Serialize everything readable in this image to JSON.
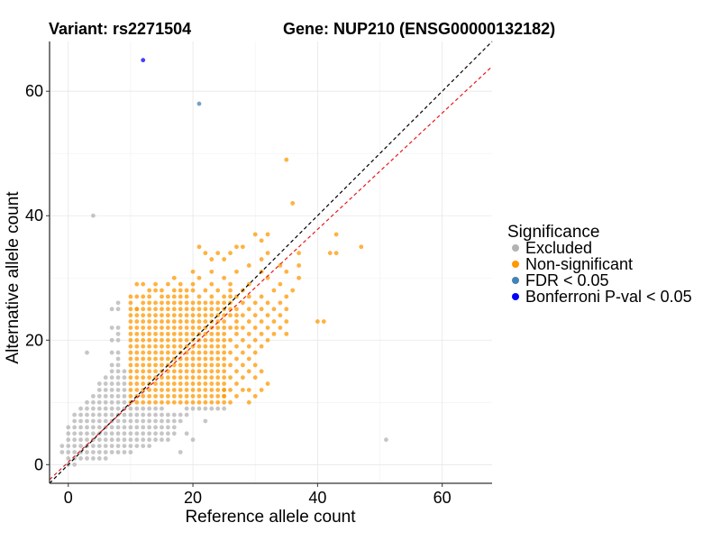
{
  "chart_data": {
    "type": "scatter",
    "title_left": "Variant: rs2271504",
    "title_right": "Gene: NUP210 (ENSG00000132182)",
    "xlabel": "Reference allele count",
    "ylabel": "Alternative allele count",
    "xlim": [
      -3,
      68
    ],
    "ylim": [
      -3,
      68
    ],
    "xticks": [
      0,
      20,
      40,
      60
    ],
    "yticks": [
      0,
      20,
      40,
      60
    ],
    "grid": true,
    "reference_lines": [
      {
        "name": "identity",
        "slope": 1.0,
        "intercept": 0,
        "color": "#000000",
        "dash": "dashed"
      },
      {
        "name": "expected-ratio",
        "slope": 0.935,
        "intercept": 0.4,
        "color": "#e41a1c",
        "dash": "dashed"
      }
    ],
    "legend": {
      "title": "Significance",
      "position": "right",
      "entries": [
        {
          "label": "Excluded",
          "color": "#b3b3b3"
        },
        {
          "label": "Non-significant",
          "color": "#ff9800"
        },
        {
          "label": "FDR < 0.05",
          "color": "#4682b4"
        },
        {
          "label": "Bonferroni P-val < 0.05",
          "color": "#0000ff"
        }
      ]
    },
    "series": [
      {
        "name": "Excluded",
        "color": "#b3b3b3",
        "points": [
          [
            0,
            0
          ],
          [
            0,
            1
          ],
          [
            0,
            2
          ],
          [
            0,
            3
          ],
          [
            0,
            4
          ],
          [
            0,
            5
          ],
          [
            1,
            1
          ],
          [
            1,
            2
          ],
          [
            1,
            3
          ],
          [
            1,
            4
          ],
          [
            1,
            5
          ],
          [
            1,
            6
          ],
          [
            1,
            7
          ],
          [
            2,
            2
          ],
          [
            2,
            3
          ],
          [
            2,
            4
          ],
          [
            2,
            5
          ],
          [
            2,
            6
          ],
          [
            2,
            7
          ],
          [
            2,
            8
          ],
          [
            3,
            1
          ],
          [
            3,
            2
          ],
          [
            3,
            3
          ],
          [
            3,
            4
          ],
          [
            3,
            5
          ],
          [
            3,
            6
          ],
          [
            3,
            7
          ],
          [
            3,
            8
          ],
          [
            3,
            9
          ],
          [
            4,
            2
          ],
          [
            4,
            3
          ],
          [
            4,
            4
          ],
          [
            4,
            5
          ],
          [
            4,
            6
          ],
          [
            4,
            7
          ],
          [
            4,
            8
          ],
          [
            4,
            9
          ],
          [
            4,
            10
          ],
          [
            5,
            1
          ],
          [
            5,
            2
          ],
          [
            5,
            3
          ],
          [
            5,
            4
          ],
          [
            5,
            5
          ],
          [
            5,
            6
          ],
          [
            5,
            7
          ],
          [
            5,
            8
          ],
          [
            5,
            9
          ],
          [
            5,
            10
          ],
          [
            5,
            11
          ],
          [
            6,
            2
          ],
          [
            6,
            3
          ],
          [
            6,
            4
          ],
          [
            6,
            5
          ],
          [
            6,
            6
          ],
          [
            6,
            7
          ],
          [
            6,
            8
          ],
          [
            6,
            9
          ],
          [
            6,
            10
          ],
          [
            6,
            11
          ],
          [
            6,
            12
          ],
          [
            7,
            3
          ],
          [
            7,
            4
          ],
          [
            7,
            5
          ],
          [
            7,
            6
          ],
          [
            7,
            7
          ],
          [
            7,
            8
          ],
          [
            7,
            9
          ],
          [
            7,
            10
          ],
          [
            7,
            11
          ],
          [
            7,
            12
          ],
          [
            7,
            13
          ],
          [
            8,
            2
          ],
          [
            8,
            3
          ],
          [
            8,
            4
          ],
          [
            8,
            5
          ],
          [
            8,
            6
          ],
          [
            8,
            7
          ],
          [
            8,
            8
          ],
          [
            8,
            9
          ],
          [
            8,
            10
          ],
          [
            8,
            11
          ],
          [
            8,
            12
          ],
          [
            8,
            13
          ],
          [
            8,
            14
          ],
          [
            9,
            3
          ],
          [
            9,
            4
          ],
          [
            9,
            5
          ],
          [
            9,
            6
          ],
          [
            9,
            7
          ],
          [
            9,
            8
          ],
          [
            9,
            9
          ],
          [
            9,
            10
          ],
          [
            9,
            11
          ],
          [
            9,
            12
          ],
          [
            9,
            13
          ],
          [
            9,
            14
          ],
          [
            9,
            15
          ],
          [
            10,
            3
          ],
          [
            10,
            4
          ],
          [
            10,
            5
          ],
          [
            10,
            6
          ],
          [
            10,
            7
          ],
          [
            10,
            8
          ],
          [
            10,
            9
          ],
          [
            11,
            4
          ],
          [
            11,
            5
          ],
          [
            11,
            6
          ],
          [
            11,
            7
          ],
          [
            11,
            8
          ],
          [
            11,
            9
          ],
          [
            12,
            4
          ],
          [
            12,
            5
          ],
          [
            12,
            6
          ],
          [
            12,
            7
          ],
          [
            12,
            8
          ],
          [
            12,
            9
          ],
          [
            13,
            4
          ],
          [
            13,
            5
          ],
          [
            13,
            6
          ],
          [
            13,
            7
          ],
          [
            13,
            8
          ],
          [
            13,
            9
          ],
          [
            14,
            5
          ],
          [
            14,
            6
          ],
          [
            14,
            7
          ],
          [
            14,
            8
          ],
          [
            14,
            9
          ],
          [
            15,
            5
          ],
          [
            15,
            6
          ],
          [
            15,
            7
          ],
          [
            15,
            8
          ],
          [
            15,
            9
          ],
          [
            16,
            5
          ],
          [
            16,
            6
          ],
          [
            16,
            7
          ],
          [
            16,
            8
          ],
          [
            17,
            6
          ],
          [
            17,
            7
          ],
          [
            17,
            8
          ],
          [
            18,
            7
          ],
          [
            18,
            8
          ],
          [
            19,
            8
          ],
          [
            19,
            9
          ],
          [
            20,
            9
          ],
          [
            21,
            9
          ],
          [
            22,
            9
          ],
          [
            23,
            9
          ],
          [
            24,
            9
          ],
          [
            25,
            9
          ],
          [
            1,
            0
          ],
          [
            2,
            1
          ],
          [
            4,
            1
          ],
          [
            6,
            1
          ],
          [
            7,
            2
          ],
          [
            9,
            2
          ],
          [
            10,
            2
          ],
          [
            11,
            3
          ],
          [
            12,
            3
          ],
          [
            -1,
            2
          ],
          [
            -1,
            3
          ],
          [
            0,
            6
          ],
          [
            1,
            8
          ],
          [
            2,
            9
          ],
          [
            3,
            10
          ],
          [
            4,
            11
          ],
          [
            5,
            12
          ],
          [
            5,
            13
          ],
          [
            6,
            13
          ],
          [
            6,
            14
          ],
          [
            7,
            14
          ],
          [
            7,
            15
          ],
          [
            7,
            16
          ],
          [
            8,
            15
          ],
          [
            8,
            16
          ],
          [
            8,
            17
          ],
          [
            8,
            18
          ],
          [
            7,
            18
          ],
          [
            7,
            20
          ],
          [
            7,
            22
          ],
          [
            8,
            20
          ],
          [
            8,
            21
          ],
          [
            8,
            22
          ],
          [
            7,
            25
          ],
          [
            8,
            25
          ],
          [
            8,
            26
          ],
          [
            3,
            18
          ],
          [
            4,
            40
          ],
          [
            51,
            4
          ],
          [
            18,
            2
          ],
          [
            20,
            4
          ],
          [
            19,
            5
          ],
          [
            22,
            7
          ],
          [
            13,
            3
          ],
          [
            15,
            4
          ],
          [
            17,
            5
          ],
          [
            14,
            4
          ],
          [
            16,
            4
          ]
        ]
      },
      {
        "name": "Non-significant",
        "color": "#ff9800",
        "points": []
      },
      {
        "name": "FDR < 0.05",
        "color": "#4682b4",
        "points": [
          [
            21,
            58
          ]
        ]
      },
      {
        "name": "Bonferroni P-val < 0.05",
        "color": "#0000ff",
        "points": [
          [
            12,
            65
          ]
        ]
      }
    ],
    "non_significant_grid": {
      "note": "dense block of Non-significant points covering x 10-25, y 10-25 (integer lattice)",
      "x_range": [
        10,
        25
      ],
      "y_range": [
        10,
        25
      ]
    },
    "non_significant_extra": [
      [
        10,
        26
      ],
      [
        11,
        25
      ],
      [
        11,
        27
      ],
      [
        12,
        26
      ],
      [
        12,
        27
      ],
      [
        12,
        29
      ],
      [
        13,
        26
      ],
      [
        13,
        27
      ],
      [
        13,
        28
      ],
      [
        14,
        26
      ],
      [
        14,
        28
      ],
      [
        14,
        29
      ],
      [
        15,
        26
      ],
      [
        15,
        27
      ],
      [
        15,
        28
      ],
      [
        16,
        26
      ],
      [
        16,
        27
      ],
      [
        16,
        29
      ],
      [
        17,
        26
      ],
      [
        17,
        27
      ],
      [
        17,
        28
      ],
      [
        17,
        30
      ],
      [
        18,
        26
      ],
      [
        18,
        27
      ],
      [
        18,
        28
      ],
      [
        18,
        29
      ],
      [
        19,
        26
      ],
      [
        19,
        27
      ],
      [
        19,
        28
      ],
      [
        20,
        26
      ],
      [
        20,
        28
      ],
      [
        20,
        29
      ],
      [
        20,
        31
      ],
      [
        21,
        26
      ],
      [
        21,
        27
      ],
      [
        21,
        30
      ],
      [
        21,
        35
      ],
      [
        22,
        26
      ],
      [
        22,
        28
      ],
      [
        22,
        34
      ],
      [
        23,
        26
      ],
      [
        23,
        27
      ],
      [
        23,
        29
      ],
      [
        23,
        31
      ],
      [
        23,
        33
      ],
      [
        24,
        26
      ],
      [
        24,
        28
      ],
      [
        24,
        34
      ],
      [
        25,
        26
      ],
      [
        25,
        27
      ],
      [
        25,
        30
      ],
      [
        25,
        33
      ],
      [
        26,
        24
      ],
      [
        26,
        25
      ],
      [
        26,
        26
      ],
      [
        26,
        27
      ],
      [
        26,
        28
      ],
      [
        26,
        29
      ],
      [
        26,
        34
      ],
      [
        27,
        22
      ],
      [
        27,
        23
      ],
      [
        27,
        24
      ],
      [
        27,
        25
      ],
      [
        27,
        27
      ],
      [
        27,
        31
      ],
      [
        27,
        35
      ],
      [
        28,
        22
      ],
      [
        28,
        24
      ],
      [
        28,
        26
      ],
      [
        28,
        28
      ],
      [
        28,
        35
      ],
      [
        29,
        21
      ],
      [
        29,
        23
      ],
      [
        29,
        25
      ],
      [
        29,
        27
      ],
      [
        29,
        29
      ],
      [
        29,
        32
      ],
      [
        30,
        22
      ],
      [
        30,
        24
      ],
      [
        30,
        26
      ],
      [
        30,
        37
      ],
      [
        31,
        21
      ],
      [
        31,
        23
      ],
      [
        31,
        25
      ],
      [
        31,
        27
      ],
      [
        31,
        31
      ],
      [
        31,
        33
      ],
      [
        31,
        36
      ],
      [
        32,
        22
      ],
      [
        32,
        24
      ],
      [
        32,
        26
      ],
      [
        32,
        30
      ],
      [
        32,
        34
      ],
      [
        32,
        37
      ],
      [
        33,
        23
      ],
      [
        33,
        25
      ],
      [
        33,
        28
      ],
      [
        34,
        24
      ],
      [
        34,
        26
      ],
      [
        34,
        29
      ],
      [
        34,
        32
      ],
      [
        35,
        21
      ],
      [
        35,
        25
      ],
      [
        35,
        27
      ],
      [
        35,
        31
      ],
      [
        35,
        49
      ],
      [
        36,
        28
      ],
      [
        36,
        42
      ],
      [
        37,
        30
      ],
      [
        37,
        32
      ],
      [
        37,
        34
      ],
      [
        40,
        23
      ],
      [
        41,
        23
      ],
      [
        42,
        34
      ],
      [
        43,
        34
      ],
      [
        43,
        37
      ],
      [
        47,
        35
      ],
      [
        26,
        20
      ],
      [
        26,
        18
      ],
      [
        27,
        19
      ],
      [
        27,
        17
      ],
      [
        28,
        18
      ],
      [
        28,
        16
      ],
      [
        29,
        17
      ],
      [
        29,
        15
      ],
      [
        30,
        16
      ],
      [
        26,
        16
      ],
      [
        26,
        14
      ],
      [
        27,
        15
      ],
      [
        27,
        13
      ],
      [
        28,
        14
      ],
      [
        26,
        12
      ],
      [
        27,
        11
      ],
      [
        28,
        12
      ],
      [
        26,
        10
      ],
      [
        26,
        22
      ],
      [
        27,
        21
      ],
      [
        28,
        20
      ],
      [
        29,
        19
      ],
      [
        30,
        18
      ],
      [
        31,
        19
      ],
      [
        32,
        20
      ],
      [
        33,
        21
      ],
      [
        34,
        22
      ],
      [
        35,
        23
      ],
      [
        30,
        20
      ],
      [
        29,
        12
      ],
      [
        30,
        14
      ],
      [
        31,
        15
      ],
      [
        29,
        10
      ],
      [
        30,
        11
      ],
      [
        31,
        12
      ],
      [
        32,
        13
      ],
      [
        25,
        11
      ],
      [
        25,
        12
      ],
      [
        10,
        27
      ],
      [
        11,
        29
      ]
    ]
  }
}
